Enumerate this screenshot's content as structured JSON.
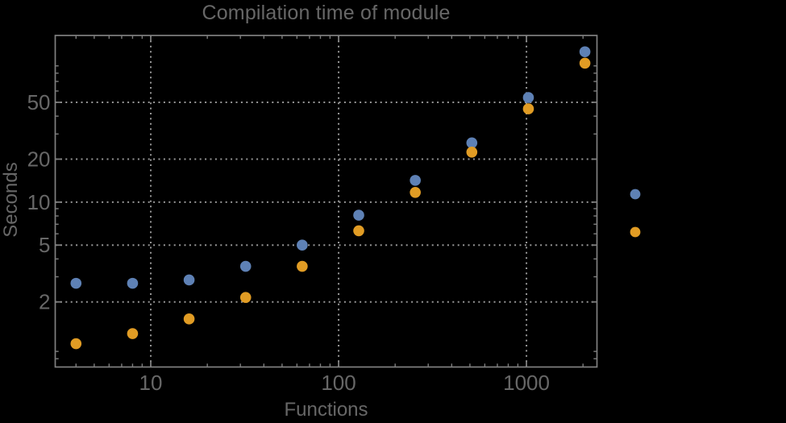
{
  "title": "Compilation time of module",
  "axes": {
    "x_label": "Functions",
    "y_label": "Seconds"
  },
  "colors": {
    "background": "#000000",
    "frame": "#808080",
    "grid": "#969696",
    "tick": "#7d7d7d",
    "text": "#676767",
    "series_blue": "#5E81B5",
    "series_orange": "#E19C24"
  },
  "chart_data": {
    "type": "scatter",
    "title": "Compilation time of module",
    "xlabel": "Functions",
    "ylabel": "Seconds",
    "x_scale": "log",
    "y_scale": "log",
    "xlim": [
      3.1,
      2373
    ],
    "ylim": [
      0.7,
      147
    ],
    "x_ticks": [
      10,
      100,
      1000
    ],
    "y_ticks": [
      2,
      5,
      10,
      20,
      50
    ],
    "grid": "dotted",
    "x": [
      4,
      8,
      16,
      32,
      64,
      128,
      256,
      512,
      1024,
      2048
    ],
    "series": [
      {
        "name": "blue",
        "color": "#5E81B5",
        "values": [
          2.7,
          2.7,
          2.85,
          3.55,
          5.0,
          8.1,
          14.2,
          26,
          54,
          113
        ]
      },
      {
        "name": "orange",
        "color": "#E19C24",
        "values": [
          1.02,
          1.2,
          1.52,
          2.15,
          3.55,
          6.3,
          11.7,
          22.4,
          45,
          94
        ]
      }
    ],
    "legend": {
      "position": "right-outside",
      "labels_visible": false,
      "markers": [
        {
          "series": "blue",
          "color": "#5E81B5"
        },
        {
          "series": "orange",
          "color": "#E19C24"
        }
      ]
    }
  }
}
